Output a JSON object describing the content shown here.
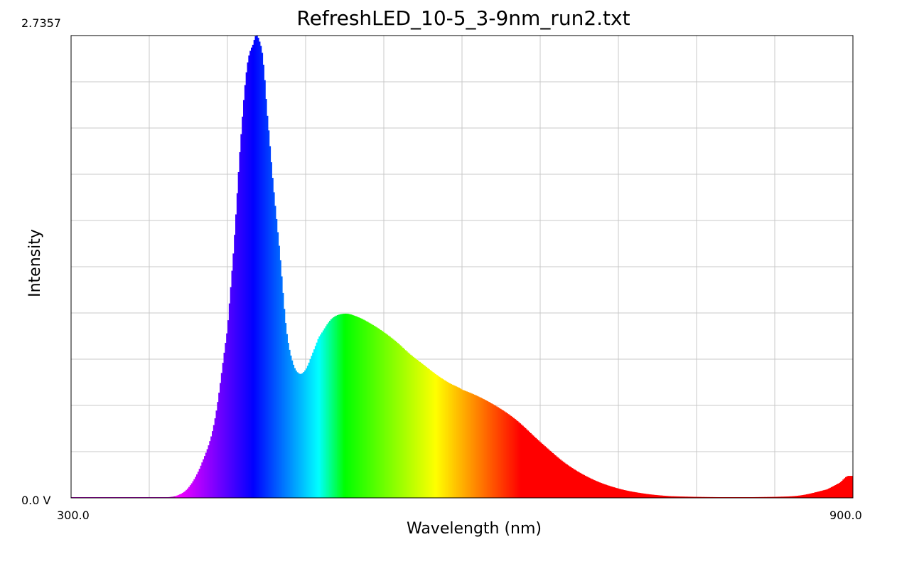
{
  "chart_data": {
    "type": "area",
    "title": "RefreshLED_10-5_3-9nm_run2.txt",
    "xlabel": "Wavelength (nm)",
    "ylabel": "Intensity",
    "xlim": [
      300.0,
      900.0
    ],
    "ylim": [
      0.0,
      2.7357
    ],
    "x_tick_labels": [
      "300.0",
      "900.0"
    ],
    "y_tick_labels": [
      "0.0 V",
      "2.7357"
    ],
    "grid": true,
    "x_gridlines": 10,
    "y_gridlines": 10,
    "fill": "wavelength-color-spectrum",
    "series": [
      {
        "x": [
          300,
          360,
          380,
          390,
          400,
          410,
          420,
          425,
          430,
          435,
          440,
          442,
          444.5,
          447,
          450,
          455,
          460,
          465,
          470,
          475,
          480,
          485,
          490,
          500,
          510,
          520,
          530,
          540,
          550,
          560,
          570,
          580,
          590,
          600,
          620,
          640,
          660,
          680,
          700,
          720,
          740,
          760,
          800,
          840,
          860,
          880,
          890,
          896,
          900
        ],
        "y": [
          0,
          0,
          0.01,
          0.06,
          0.2,
          0.45,
          1.0,
          1.5,
          2.1,
          2.55,
          2.69,
          2.7357,
          2.7,
          2.6,
          2.3,
          1.85,
          1.45,
          1.0,
          0.8,
          0.735,
          0.76,
          0.85,
          0.95,
          1.06,
          1.09,
          1.07,
          1.03,
          0.98,
          0.92,
          0.85,
          0.79,
          0.73,
          0.68,
          0.64,
          0.57,
          0.47,
          0.33,
          0.2,
          0.11,
          0.055,
          0.025,
          0.01,
          0.004,
          0.006,
          0.015,
          0.05,
          0.09,
          0.13,
          0.13
        ]
      }
    ]
  }
}
